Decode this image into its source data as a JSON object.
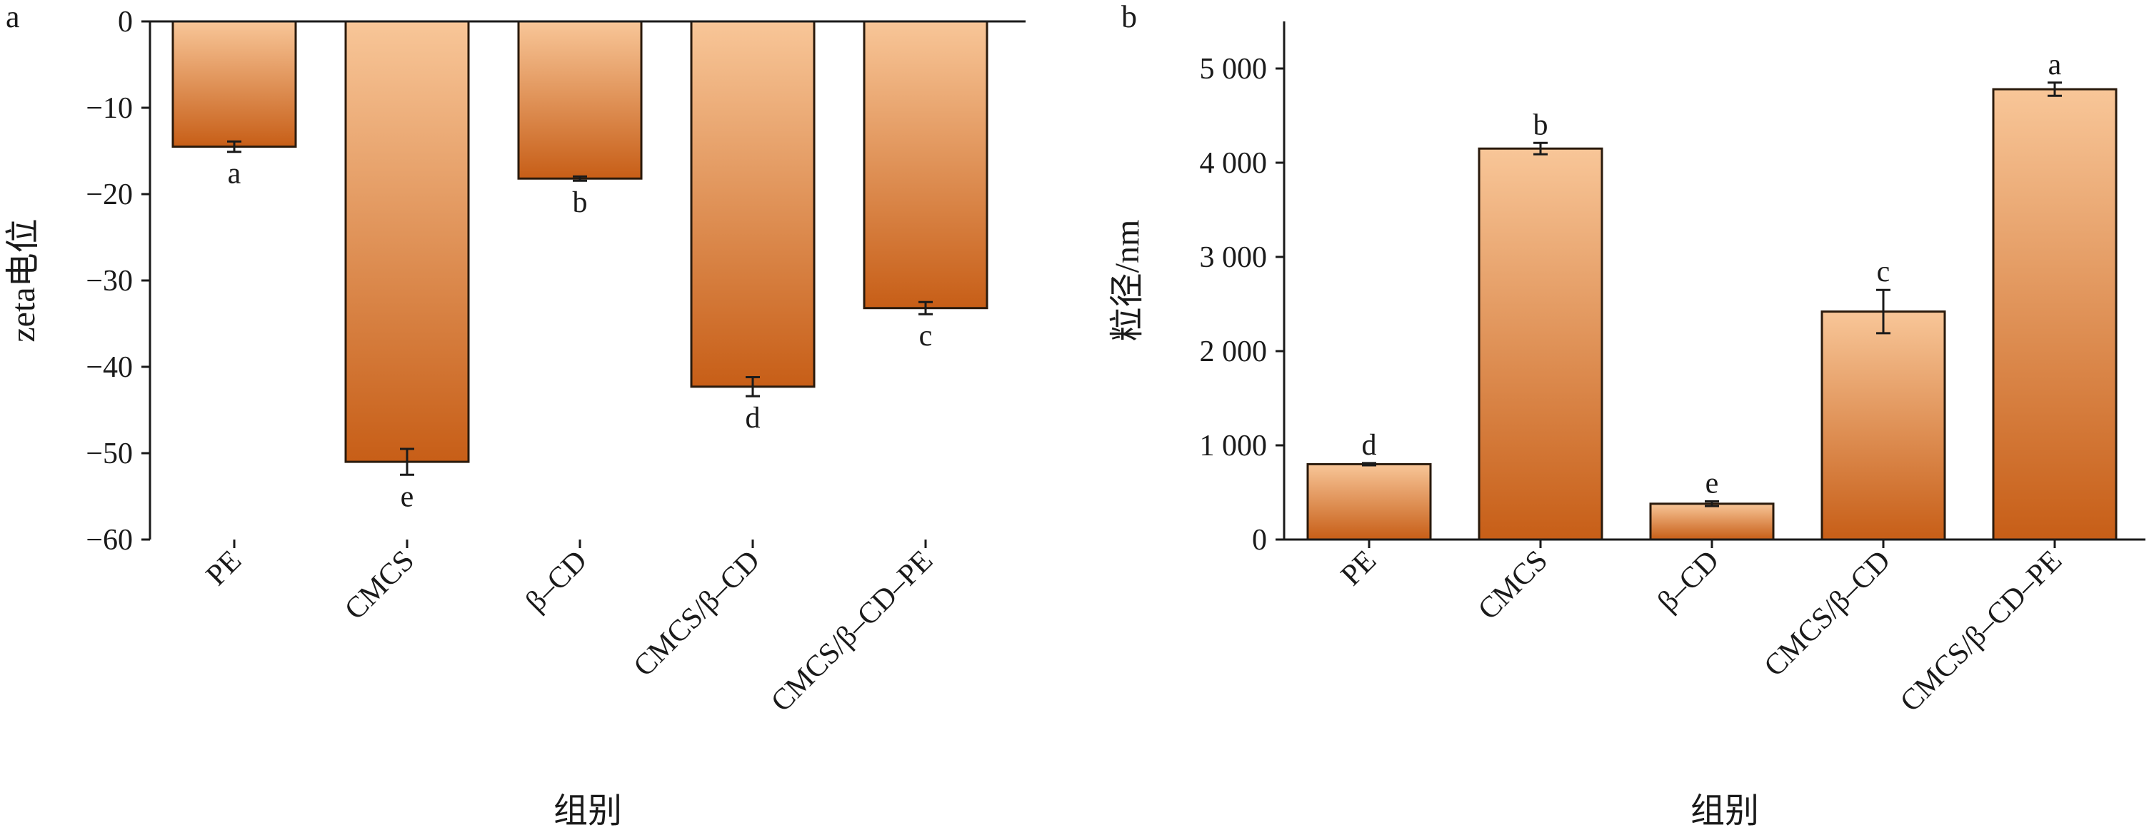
{
  "colors": {
    "bar_top": "#f8c698",
    "bar_bottom": "#c75e17",
    "axis": "#1a1a1a"
  },
  "chart_data": [
    {
      "panel": "a",
      "type": "bar",
      "categories": [
        "PE",
        "CMCS",
        "β–CD",
        "CMCS/β–CD",
        "CMCS/β–CD–PE"
      ],
      "values": [
        -14.5,
        -51,
        -18.2,
        -42.3,
        -33.2
      ],
      "errors": [
        0.6,
        1.5,
        0.25,
        1.1,
        0.7
      ],
      "significance": [
        "a",
        "e",
        "b",
        "d",
        "c"
      ],
      "xlabel": "组别",
      "ylabel": "zeta电位",
      "ylim": [
        -60,
        0
      ],
      "yticks": [
        0,
        -10,
        -20,
        -30,
        -40,
        -50,
        -60
      ],
      "ytick_labels": [
        "0",
        "−10",
        "−20",
        "−30",
        "−40",
        "−50",
        "−60"
      ]
    },
    {
      "panel": "b",
      "type": "bar",
      "categories": [
        "PE",
        "CMCS",
        "β–CD",
        "CMCS/β–CD",
        "CMCS/β–CD–PE"
      ],
      "values": [
        800,
        4150,
        380,
        2420,
        4780
      ],
      "errors": [
        12,
        60,
        25,
        230,
        70
      ],
      "significance": [
        "d",
        "b",
        "e",
        "c",
        "a"
      ],
      "xlabel": "组别",
      "ylabel": "粒径/nm",
      "ylim": [
        0,
        5500
      ],
      "yticks": [
        0,
        1000,
        2000,
        3000,
        4000,
        5000
      ],
      "ytick_labels": [
        "0",
        "1 000",
        "2 000",
        "3 000",
        "4 000",
        "5 000"
      ]
    }
  ]
}
